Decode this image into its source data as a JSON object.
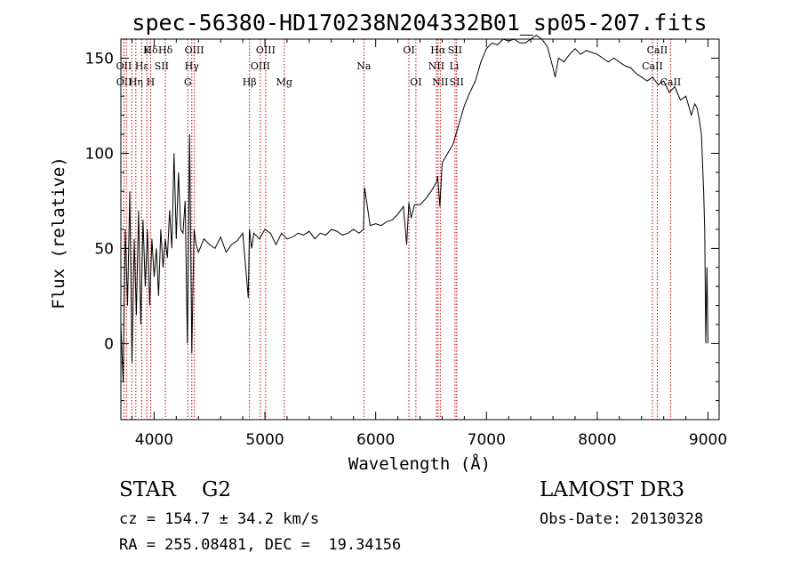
{
  "chart_data": {
    "type": "line",
    "title": "spec-56380-HD170238N204332B01_sp05-207.fits",
    "xlabel": "Wavelength (Å)",
    "ylabel": "Flux (relative)",
    "xlim": [
      3700,
      9100
    ],
    "ylim": [
      -40,
      160
    ],
    "x_ticks": [
      4000,
      5000,
      6000,
      7000,
      8000,
      9000
    ],
    "y_ticks": [
      0,
      50,
      100,
      150
    ],
    "series": [
      {
        "name": "flux",
        "x": [
          3700,
          3720,
          3740,
          3760,
          3780,
          3800,
          3820,
          3840,
          3860,
          3880,
          3900,
          3920,
          3940,
          3960,
          3980,
          4000,
          4020,
          4040,
          4060,
          4080,
          4100,
          4120,
          4140,
          4160,
          4180,
          4200,
          4220,
          4240,
          4260,
          4280,
          4300,
          4320,
          4340,
          4360,
          4380,
          4400,
          4450,
          4500,
          4550,
          4600,
          4650,
          4700,
          4750,
          4800,
          4850,
          4860,
          4880,
          4900,
          4950,
          5000,
          5050,
          5100,
          5150,
          5200,
          5250,
          5300,
          5350,
          5400,
          5450,
          5500,
          5550,
          5600,
          5650,
          5700,
          5750,
          5800,
          5850,
          5890,
          5900,
          5950,
          6000,
          6050,
          6100,
          6150,
          6200,
          6250,
          6280,
          6300,
          6320,
          6350,
          6400,
          6450,
          6500,
          6550,
          6560,
          6580,
          6600,
          6650,
          6700,
          6750,
          6800,
          6850,
          6900,
          6950,
          7000,
          7050,
          7100,
          7150,
          7200,
          7250,
          7300,
          7350,
          7400,
          7450,
          7500,
          7550,
          7600,
          7620,
          7650,
          7700,
          7750,
          7800,
          7850,
          7900,
          7950,
          8000,
          8050,
          8100,
          8150,
          8200,
          8250,
          8300,
          8350,
          8400,
          8450,
          8500,
          8550,
          8600,
          8650,
          8700,
          8750,
          8800,
          8850,
          8880,
          8900,
          8920,
          8940,
          8960,
          8970,
          8980,
          8990,
          9000
        ],
        "y": [
          10,
          -20,
          60,
          20,
          80,
          -10,
          55,
          15,
          70,
          10,
          65,
          30,
          60,
          20,
          55,
          35,
          50,
          25,
          60,
          40,
          55,
          45,
          70,
          50,
          100,
          55,
          90,
          60,
          58,
          75,
          0,
          110,
          -5,
          60,
          52,
          48,
          55,
          52,
          50,
          56,
          48,
          52,
          54,
          58,
          24,
          60,
          50,
          58,
          55,
          60,
          58,
          52,
          58,
          55,
          56,
          58,
          57,
          59,
          55,
          58,
          57,
          60,
          59,
          57,
          58,
          60,
          58,
          60,
          82,
          62,
          63,
          62,
          64,
          65,
          68,
          72,
          52,
          74,
          66,
          73,
          73,
          76,
          80,
          85,
          88,
          72,
          95,
          100,
          105,
          115,
          125,
          132,
          138,
          148,
          155,
          158,
          157,
          160,
          159,
          160,
          158,
          158,
          160,
          162,
          160,
          156,
          145,
          140,
          150,
          148,
          152,
          155,
          152,
          154,
          153,
          152,
          150,
          148,
          150,
          148,
          146,
          145,
          142,
          140,
          138,
          140,
          136,
          138,
          132,
          135,
          128,
          130,
          120,
          126,
          124,
          118,
          110,
          80,
          60,
          0,
          40,
          0
        ]
      }
    ],
    "lines_top": [
      {
        "label": "Hδ",
        "x": 3970
      },
      {
        "label": "K",
        "x": 3934
      },
      {
        "label": "Hδ",
        "x": 4102
      },
      {
        "label": "OIII",
        "x": 4363
      },
      {
        "label": "OIII",
        "x": 5007
      },
      {
        "label": "OI",
        "x": 6300
      },
      {
        "label": "Hα",
        "x": 6563
      },
      {
        "label": "SII",
        "x": 6716
      },
      {
        "label": "CaII",
        "x": 8542
      }
    ],
    "lines_mid": [
      {
        "label": "OII",
        "x": 3727
      },
      {
        "label": "Hε",
        "x": 3889
      },
      {
        "label": "SII",
        "x": 4068
      },
      {
        "label": "Hγ",
        "x": 4340
      },
      {
        "label": "OIII",
        "x": 4959
      },
      {
        "label": "Na",
        "x": 5893
      },
      {
        "label": "NII",
        "x": 6548
      },
      {
        "label": "Li",
        "x": 6708
      },
      {
        "label": "CaII",
        "x": 8498
      }
    ],
    "lines_low": [
      {
        "label": "OII",
        "x": 3729
      },
      {
        "label": "Hη",
        "x": 3835
      },
      {
        "label": "H",
        "x": 3968
      },
      {
        "label": "G",
        "x": 4304
      },
      {
        "label": "Hβ",
        "x": 4861
      },
      {
        "label": "Mg",
        "x": 5175
      },
      {
        "label": "OI",
        "x": 6363
      },
      {
        "label": "NII",
        "x": 6583
      },
      {
        "label": "SII",
        "x": 6731
      },
      {
        "label": "CaII",
        "x": 8662
      }
    ],
    "vline_positions": [
      3727,
      3750,
      3798,
      3835,
      3889,
      3934,
      3968,
      4102,
      4304,
      4340,
      4363,
      4861,
      4959,
      5007,
      5175,
      5893,
      6300,
      6363,
      6548,
      6563,
      6583,
      6716,
      6731,
      8498,
      8542,
      8662
    ]
  },
  "info": {
    "class_line": "STAR    G2",
    "cz_line": "cz = 154.7 ± 34.2 km/s",
    "radec_line": "RA = 255.08481, DEC =  19.34156",
    "survey_line": "LAMOST DR3",
    "obsdate_line": "Obs-Date: 20130328"
  }
}
